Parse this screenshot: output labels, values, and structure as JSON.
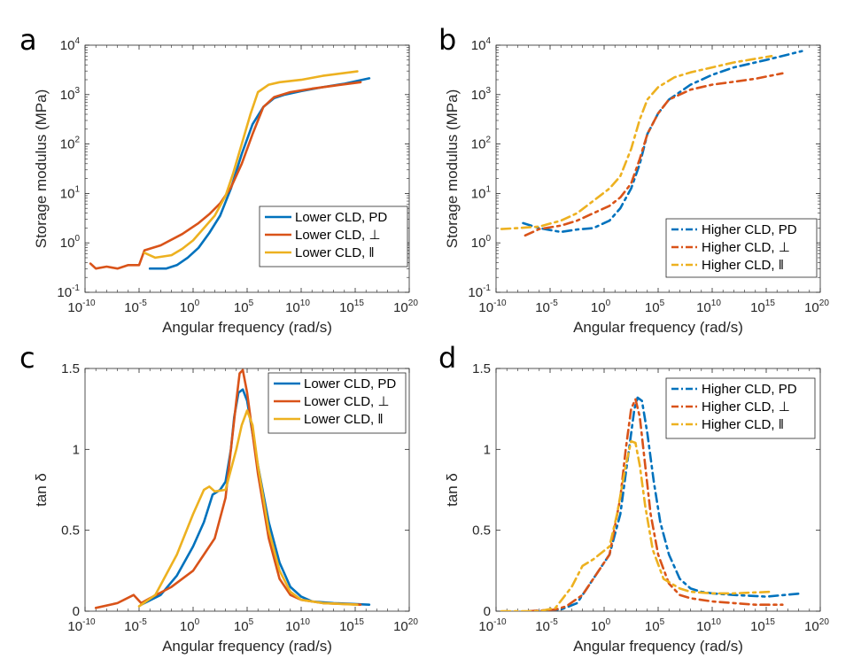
{
  "chart_data": [
    {
      "panel": "a",
      "type": "line",
      "xscale": "log",
      "yscale": "log",
      "xlim": [
        1e-10,
        1e+20
      ],
      "ylim": [
        0.1,
        10000
      ],
      "xticks": [
        {
          "base": "10",
          "exp": "-10"
        },
        {
          "base": "10",
          "exp": "-5"
        },
        {
          "base": "10",
          "exp": "0"
        },
        {
          "base": "10",
          "exp": "5"
        },
        {
          "base": "10",
          "exp": "10"
        },
        {
          "base": "10",
          "exp": "15"
        },
        {
          "base": "10",
          "exp": "20"
        }
      ],
      "yticks": [
        {
          "base": "10",
          "exp": "-1"
        },
        {
          "base": "10",
          "exp": "0"
        },
        {
          "base": "10",
          "exp": "1"
        },
        {
          "base": "10",
          "exp": "2"
        },
        {
          "base": "10",
          "exp": "3"
        },
        {
          "base": "10",
          "exp": "4"
        }
      ],
      "xlabel": "Angular frequency (rad/s)",
      "ylabel": "Storage modulus (MPa)",
      "legend_position": "bottom-right",
      "series": [
        {
          "name": "Lower CLD, PD",
          "color": "#0072BD",
          "dash": "solid",
          "x": [
            -4,
            -2.5,
            -1.5,
            -0.5,
            0.5,
            1.5,
            2.5,
            3.5,
            4.5,
            5.5,
            6.5,
            7.5,
            8.5,
            10,
            12,
            14,
            16.3
          ],
          "y": [
            -0.52,
            -0.52,
            -0.45,
            -0.3,
            -0.1,
            0.2,
            0.55,
            1.1,
            1.8,
            2.4,
            2.75,
            2.93,
            3.0,
            3.07,
            3.15,
            3.22,
            3.33
          ]
        },
        {
          "name": "Lower CLD, ⊥",
          "color": "#D95319",
          "dash": "solid",
          "x": [
            -9.5,
            -9,
            -8,
            -7,
            -6,
            -5,
            -4.5,
            -3,
            -1,
            0.5,
            1.5,
            2.5,
            3.5,
            4.5,
            5.5,
            6.5,
            7.5,
            9,
            11,
            13,
            15.5
          ],
          "y": [
            -0.42,
            -0.52,
            -0.48,
            -0.52,
            -0.45,
            -0.45,
            -0.15,
            -0.05,
            0.18,
            0.4,
            0.58,
            0.8,
            1.12,
            1.6,
            2.2,
            2.75,
            2.95,
            3.05,
            3.12,
            3.18,
            3.25
          ]
        },
        {
          "name": "Lower CLD, ‖",
          "color": "#EDB120",
          "dash": "solid",
          "x": [
            -4.5,
            -3.5,
            -2,
            -1,
            0,
            1,
            2,
            3,
            3.7,
            4.5,
            5.3,
            6,
            7,
            8,
            10,
            12,
            15.2
          ],
          "y": [
            -0.2,
            -0.3,
            -0.25,
            -0.12,
            0.05,
            0.3,
            0.55,
            0.95,
            1.4,
            2.0,
            2.6,
            3.05,
            3.2,
            3.25,
            3.3,
            3.38,
            3.47
          ]
        }
      ]
    },
    {
      "panel": "b",
      "type": "line",
      "xscale": "log",
      "yscale": "log",
      "xlim": [
        1e-10,
        1e+20
      ],
      "ylim": [
        0.1,
        10000
      ],
      "xticks": [
        {
          "base": "10",
          "exp": "-10"
        },
        {
          "base": "10",
          "exp": "-5"
        },
        {
          "base": "10",
          "exp": "0"
        },
        {
          "base": "10",
          "exp": "5"
        },
        {
          "base": "10",
          "exp": "10"
        },
        {
          "base": "10",
          "exp": "15"
        },
        {
          "base": "10",
          "exp": "20"
        }
      ],
      "yticks": [
        {
          "base": "10",
          "exp": "-1"
        },
        {
          "base": "10",
          "exp": "0"
        },
        {
          "base": "10",
          "exp": "1"
        },
        {
          "base": "10",
          "exp": "2"
        },
        {
          "base": "10",
          "exp": "3"
        },
        {
          "base": "10",
          "exp": "4"
        }
      ],
      "xlabel": "Angular frequency (rad/s)",
      "ylabel": "Storage modulus (MPa)",
      "legend_position": "bottom-right",
      "series": [
        {
          "name": "Higher CLD, PD",
          "color": "#0072BD",
          "dash": "dashdot",
          "x": [
            -7.5,
            -6,
            -4,
            -2.5,
            -1,
            0.5,
            1.5,
            2.5,
            3.3,
            4,
            5,
            6,
            8,
            10,
            12,
            15,
            18.3
          ],
          "y": [
            0.4,
            0.3,
            0.22,
            0.27,
            0.3,
            0.45,
            0.7,
            1.1,
            1.6,
            2.2,
            2.62,
            2.9,
            3.2,
            3.4,
            3.55,
            3.7,
            3.88
          ]
        },
        {
          "name": "Higher CLD, ⊥",
          "color": "#D95319",
          "dash": "dashdot",
          "x": [
            -7.3,
            -6,
            -4,
            -2.5,
            -1,
            0.5,
            1.5,
            2.5,
            3.3,
            4,
            5,
            6,
            8,
            10,
            12,
            14,
            16.5
          ],
          "y": [
            0.15,
            0.28,
            0.35,
            0.45,
            0.6,
            0.75,
            0.92,
            1.2,
            1.7,
            2.2,
            2.62,
            2.9,
            3.1,
            3.2,
            3.26,
            3.32,
            3.43
          ]
        },
        {
          "name": "Higher CLD, ‖",
          "color": "#EDB120",
          "dash": "dashdot",
          "x": [
            -9.5,
            -8,
            -6,
            -4,
            -2.5,
            -1,
            0.5,
            1.5,
            2.5,
            3.3,
            4,
            5,
            6.5,
            8,
            10,
            12,
            15.5
          ],
          "y": [
            0.28,
            0.3,
            0.33,
            0.45,
            0.6,
            0.85,
            1.1,
            1.35,
            1.9,
            2.5,
            2.9,
            3.15,
            3.35,
            3.45,
            3.55,
            3.65,
            3.78
          ]
        }
      ]
    },
    {
      "panel": "c",
      "type": "line",
      "xscale": "log",
      "yscale": "linear",
      "xlim": [
        1e-10,
        1e+20
      ],
      "ylim": [
        0,
        1.5
      ],
      "xticks": [
        {
          "base": "10",
          "exp": "-10"
        },
        {
          "base": "10",
          "exp": "-5"
        },
        {
          "base": "10",
          "exp": "0"
        },
        {
          "base": "10",
          "exp": "5"
        },
        {
          "base": "10",
          "exp": "10"
        },
        {
          "base": "10",
          "exp": "15"
        },
        {
          "base": "10",
          "exp": "20"
        }
      ],
      "yticks": [
        {
          "label": "0",
          "value": 0
        },
        {
          "label": "0.5",
          "value": 0.5
        },
        {
          "label": "1",
          "value": 1
        },
        {
          "label": "1.5",
          "value": 1.5
        }
      ],
      "xlabel": "Angular frequency (rad/s)",
      "ylabel": "tan δ",
      "legend_position": "top-right",
      "series": [
        {
          "name": "Lower CLD, PD",
          "color": "#0072BD",
          "dash": "solid",
          "x": [
            -4.8,
            -3,
            -1.5,
            0,
            1,
            1.8,
            2.5,
            3,
            3.5,
            3.8,
            4.2,
            4.6,
            5,
            5.5,
            6,
            7,
            8,
            9,
            10,
            11,
            13,
            16.3
          ],
          "y": [
            0.04,
            0.1,
            0.22,
            0.4,
            0.55,
            0.72,
            0.75,
            0.8,
            1.0,
            1.2,
            1.35,
            1.37,
            1.3,
            1.1,
            0.9,
            0.55,
            0.3,
            0.15,
            0.09,
            0.06,
            0.05,
            0.04
          ]
        },
        {
          "name": "Lower CLD, ⊥",
          "color": "#D95319",
          "dash": "solid",
          "x": [
            -9,
            -7,
            -5.5,
            -4.8,
            -4,
            -2,
            0,
            1,
            2,
            3,
            3.5,
            4,
            4.3,
            4.6,
            5,
            5.5,
            6,
            7,
            8,
            9,
            10,
            12,
            15.5
          ],
          "y": [
            0.02,
            0.05,
            0.1,
            0.05,
            0.08,
            0.15,
            0.25,
            0.35,
            0.45,
            0.7,
            1.0,
            1.3,
            1.47,
            1.49,
            1.35,
            1.1,
            0.85,
            0.45,
            0.2,
            0.1,
            0.07,
            0.05,
            0.04
          ]
        },
        {
          "name": "Lower CLD, ‖",
          "color": "#EDB120",
          "dash": "solid",
          "x": [
            -5,
            -3.5,
            -1.5,
            0,
            1,
            1.5,
            2,
            3,
            4,
            4.5,
            5,
            5.5,
            6,
            7,
            8,
            9,
            10,
            12,
            15.2
          ],
          "y": [
            0.03,
            0.1,
            0.35,
            0.6,
            0.75,
            0.77,
            0.74,
            0.75,
            1.0,
            1.15,
            1.24,
            1.15,
            0.9,
            0.5,
            0.25,
            0.12,
            0.07,
            0.05,
            0.04
          ]
        }
      ]
    },
    {
      "panel": "d",
      "type": "line",
      "xscale": "log",
      "yscale": "linear",
      "xlim": [
        1e-10,
        1e+20
      ],
      "ylim": [
        0,
        1.5
      ],
      "xticks": [
        {
          "base": "10",
          "exp": "-10"
        },
        {
          "base": "10",
          "exp": "-5"
        },
        {
          "base": "10",
          "exp": "0"
        },
        {
          "base": "10",
          "exp": "5"
        },
        {
          "base": "10",
          "exp": "10"
        },
        {
          "base": "10",
          "exp": "15"
        },
        {
          "base": "10",
          "exp": "20"
        }
      ],
      "yticks": [
        {
          "label": "0",
          "value": 0
        },
        {
          "label": "0.5",
          "value": 0.5
        },
        {
          "label": "1",
          "value": 1
        },
        {
          "label": "1.5",
          "value": 1.5
        }
      ],
      "xlabel": "Angular frequency (rad/s)",
      "ylabel": "tan δ",
      "legend_position": "top-right",
      "series": [
        {
          "name": "Higher CLD, PD",
          "color": "#0072BD",
          "dash": "dashdot",
          "x": [
            -7,
            -4,
            -2.5,
            -1.5,
            -0.5,
            0.5,
            1.5,
            2.3,
            2.8,
            3.1,
            3.5,
            4,
            4.6,
            5.2,
            6,
            7,
            8,
            9,
            10,
            12,
            15,
            18.3
          ],
          "y": [
            0.0,
            0.01,
            0.05,
            0.15,
            0.25,
            0.35,
            0.6,
            1.0,
            1.25,
            1.32,
            1.3,
            1.1,
            0.8,
            0.55,
            0.35,
            0.2,
            0.14,
            0.12,
            0.11,
            0.1,
            0.09,
            0.11
          ]
        },
        {
          "name": "Higher CLD, ⊥",
          "color": "#D95319",
          "dash": "dashdot",
          "x": [
            -7,
            -4.5,
            -3.5,
            -2,
            -1,
            0.5,
            1.5,
            2,
            2.5,
            2.9,
            3.3,
            3.8,
            4.3,
            5,
            6,
            7,
            8,
            10,
            12,
            14,
            16.5
          ],
          "y": [
            0.0,
            0.01,
            0.03,
            0.1,
            0.2,
            0.35,
            0.7,
            1.0,
            1.25,
            1.31,
            1.2,
            0.9,
            0.6,
            0.35,
            0.17,
            0.1,
            0.08,
            0.06,
            0.05,
            0.04,
            0.04
          ]
        },
        {
          "name": "Higher CLD, ‖",
          "color": "#EDB120",
          "dash": "dashdot",
          "x": [
            -9.5,
            -6,
            -4.5,
            -3,
            -2,
            -1,
            0.5,
            1.2,
            2,
            2.5,
            2.9,
            3.3,
            3.8,
            4.5,
            5.5,
            7,
            8,
            10,
            12,
            15.5
          ],
          "y": [
            0.0,
            0.0,
            0.02,
            0.15,
            0.28,
            0.32,
            0.4,
            0.6,
            0.9,
            1.05,
            1.04,
            0.9,
            0.65,
            0.38,
            0.2,
            0.14,
            0.12,
            0.11,
            0.11,
            0.12
          ]
        }
      ]
    }
  ]
}
